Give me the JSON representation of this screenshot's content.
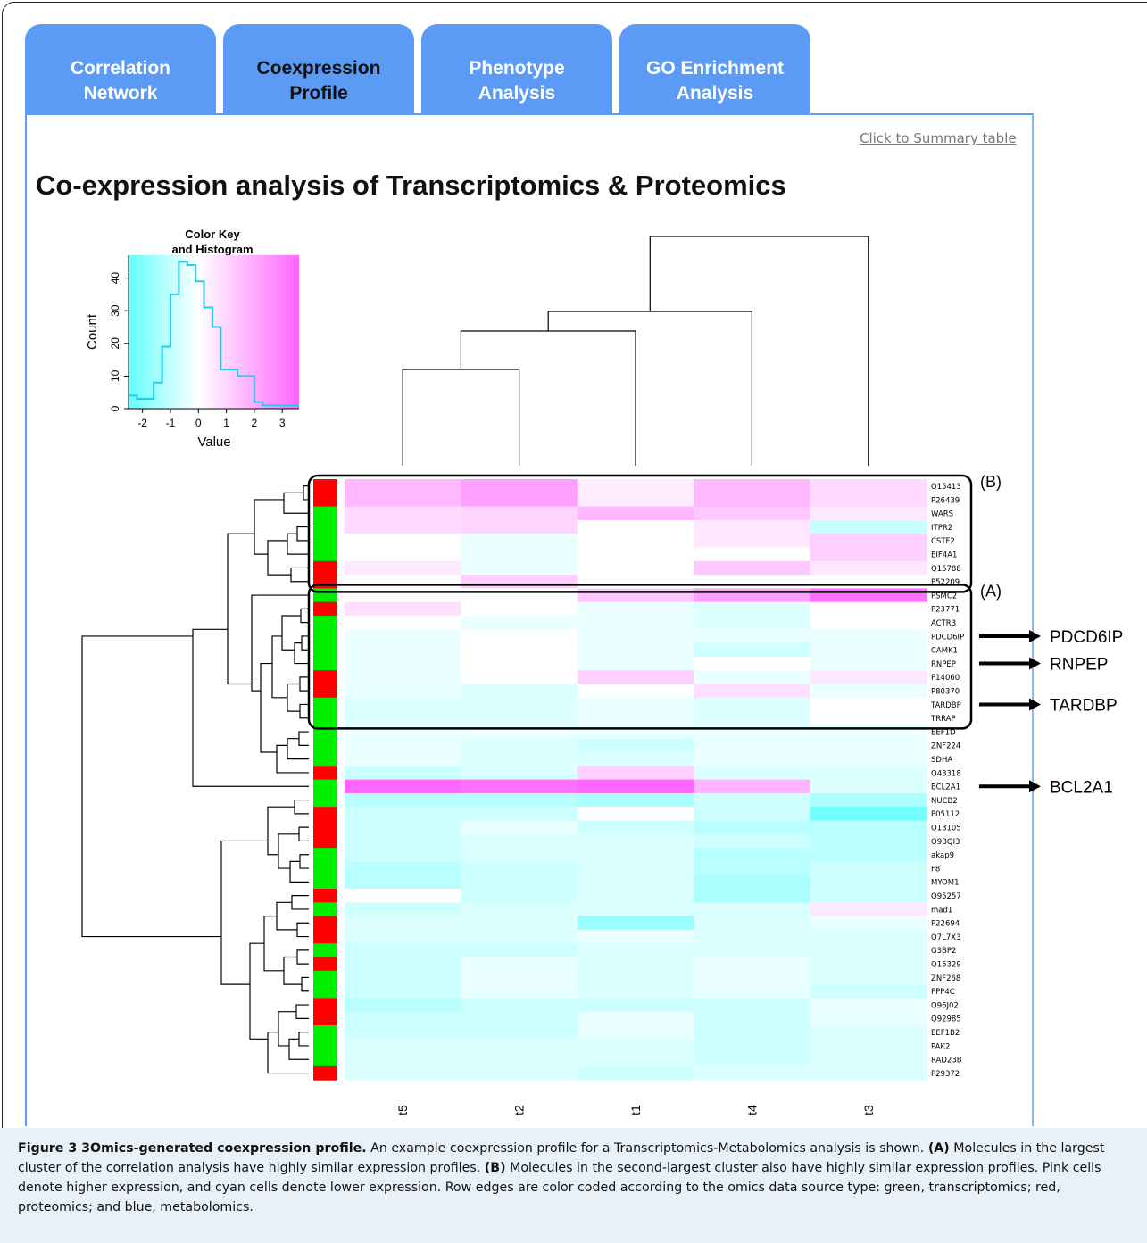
{
  "tabs": [
    {
      "line1": "Correlation",
      "line2": "Network",
      "active": false
    },
    {
      "line1": "Coexpression",
      "line2": "Profile",
      "active": true
    },
    {
      "line1": "Phenotype",
      "line2": "Analysis",
      "active": false
    },
    {
      "line1": "GO Enrichment",
      "line2": "Analysis",
      "active": false
    }
  ],
  "summary_link": "Click to Summary table",
  "page_title": "Co-expression analysis of Transcriptomics & Proteomics",
  "colors": {
    "tab": "#5b9bf5",
    "pink_high": "#ff66ff",
    "cyan_low": "#66ffff",
    "transcriptomics": "#00ee00",
    "proteomics": "#ff0000"
  },
  "chart_data": [
    {
      "type": "histogram",
      "title": "Color Key\nand Histogram",
      "title_lines": [
        "Color Key",
        "and Histogram"
      ],
      "xlabel": "Value",
      "ylabel": "Count",
      "xlim": [
        -2.5,
        3.6
      ],
      "ylim": [
        0,
        47
      ],
      "xticks": [
        -2,
        -1,
        0,
        1,
        2,
        3
      ],
      "yticks": [
        0,
        10,
        20,
        30,
        40
      ],
      "bins": [
        {
          "x0": -2.5,
          "x1": -2.2,
          "count": 4
        },
        {
          "x0": -2.2,
          "x1": -1.9,
          "count": 3
        },
        {
          "x0": -1.9,
          "x1": -1.6,
          "count": 3
        },
        {
          "x0": -1.6,
          "x1": -1.3,
          "count": 8
        },
        {
          "x0": -1.3,
          "x1": -1.0,
          "count": 19
        },
        {
          "x0": -1.0,
          "x1": -0.7,
          "count": 35
        },
        {
          "x0": -0.7,
          "x1": -0.4,
          "count": 45
        },
        {
          "x0": -0.4,
          "x1": -0.1,
          "count": 44
        },
        {
          "x0": -0.1,
          "x1": 0.2,
          "count": 39
        },
        {
          "x0": 0.2,
          "x1": 0.5,
          "count": 31
        },
        {
          "x0": 0.5,
          "x1": 0.8,
          "count": 25
        },
        {
          "x0": 0.8,
          "x1": 1.1,
          "count": 12
        },
        {
          "x0": 1.1,
          "x1": 1.4,
          "count": 12
        },
        {
          "x0": 1.4,
          "x1": 1.7,
          "count": 10
        },
        {
          "x0": 1.7,
          "x1": 2.0,
          "count": 10
        },
        {
          "x0": 2.0,
          "x1": 2.3,
          "count": 2
        },
        {
          "x0": 2.3,
          "x1": 2.6,
          "count": 1
        },
        {
          "x0": 2.6,
          "x1": 2.9,
          "count": 1
        },
        {
          "x0": 2.9,
          "x1": 3.6,
          "count": 1
        }
      ]
    },
    {
      "type": "heatmap",
      "columns": [
        "t5",
        "t2",
        "t1",
        "t4",
        "t3"
      ],
      "rows": [
        "Q15413",
        "P26439",
        "WARS",
        "ITPR2",
        "CSTF2",
        "EIF4A1",
        "Q15788",
        "P52209",
        "PSMC2",
        "P23771",
        "ACTR3",
        "PDCD6IP",
        "CAMK1",
        "RNPEP",
        "P14060",
        "P80370",
        "TARDBP",
        "TRRAP",
        "EEF1D",
        "ZNF224",
        "SDHA",
        "O43318",
        "BCL2A1",
        "NUCB2",
        "P05112",
        "Q13105",
        "Q9BQI3",
        "akap9",
        "F8",
        "MYOM1",
        "O95257",
        "mad1",
        "P22694",
        "Q7L7X3",
        "G3BP2",
        "Q15329",
        "ZNF268",
        "PPP4C",
        "Q96J02",
        "Q92985",
        "EEF1B2",
        "PAK2",
        "RAD23B",
        "P29372"
      ],
      "row_source": [
        "proteomics",
        "proteomics",
        "transcriptomics",
        "transcriptomics",
        "transcriptomics",
        "transcriptomics",
        "proteomics",
        "proteomics",
        "transcriptomics",
        "proteomics",
        "transcriptomics",
        "transcriptomics",
        "transcriptomics",
        "transcriptomics",
        "proteomics",
        "proteomics",
        "transcriptomics",
        "transcriptomics",
        "transcriptomics",
        "transcriptomics",
        "transcriptomics",
        "proteomics",
        "transcriptomics",
        "transcriptomics",
        "proteomics",
        "proteomics",
        "proteomics",
        "transcriptomics",
        "transcriptomics",
        "transcriptomics",
        "proteomics",
        "transcriptomics",
        "proteomics",
        "proteomics",
        "transcriptomics",
        "proteomics",
        "transcriptomics",
        "transcriptomics",
        "proteomics",
        "proteomics",
        "transcriptomics",
        "transcriptomics",
        "transcriptomics",
        "proteomics"
      ],
      "values": [
        [
          1.5,
          2.0,
          0.4,
          1.5,
          0.8
        ],
        [
          1.5,
          2.0,
          0.4,
          1.5,
          0.8
        ],
        [
          0.8,
          0.9,
          1.5,
          1.2,
          0.5
        ],
        [
          0.8,
          0.9,
          0.0,
          0.5,
          -0.8
        ],
        [
          0.0,
          -0.3,
          0.0,
          0.5,
          1.0
        ],
        [
          0.0,
          -0.3,
          0.0,
          0.0,
          1.0
        ],
        [
          0.5,
          -0.3,
          0.0,
          1.2,
          0.5
        ],
        [
          0.0,
          1.0,
          0.0,
          0.0,
          0.0
        ],
        [
          0.0,
          0.0,
          1.2,
          2.0,
          3.0
        ],
        [
          0.7,
          0.0,
          -0.3,
          -0.5,
          0.0
        ],
        [
          0.0,
          -0.3,
          -0.3,
          -0.5,
          0.0
        ],
        [
          -0.3,
          0.0,
          -0.3,
          -0.3,
          -0.3
        ],
        [
          -0.3,
          0.0,
          -0.3,
          -0.7,
          -0.3
        ],
        [
          -0.3,
          0.0,
          -0.3,
          0.0,
          -0.3
        ],
        [
          -0.3,
          0.0,
          1.0,
          -0.3,
          0.5
        ],
        [
          -0.3,
          -0.5,
          0.0,
          0.7,
          -0.3
        ],
        [
          -0.5,
          -0.5,
          -0.3,
          -0.5,
          0.0
        ],
        [
          -0.5,
          -0.5,
          -0.3,
          -0.5,
          0.0
        ],
        [
          -0.3,
          -0.3,
          -0.3,
          -0.3,
          -0.3
        ],
        [
          -0.3,
          -0.5,
          -0.7,
          -0.3,
          -0.3
        ],
        [
          -0.3,
          -0.5,
          -0.5,
          -0.3,
          -0.3
        ],
        [
          -0.7,
          -0.5,
          1.0,
          -0.5,
          -0.5
        ],
        [
          3.2,
          3.0,
          3.2,
          1.6,
          -0.5
        ],
        [
          -1.0,
          -1.0,
          -1.2,
          -0.7,
          -1.2
        ],
        [
          -0.7,
          -0.7,
          0.0,
          -0.7,
          -2.0
        ],
        [
          -0.7,
          -0.3,
          -0.7,
          -1.0,
          -1.0
        ],
        [
          -0.7,
          -0.5,
          -0.5,
          -0.7,
          -1.0
        ],
        [
          -0.7,
          -0.5,
          -0.5,
          -1.0,
          -1.0
        ],
        [
          -1.0,
          -0.7,
          -0.5,
          -1.0,
          -0.7
        ],
        [
          -1.0,
          -0.7,
          -0.5,
          -1.2,
          -0.7
        ],
        [
          0.0,
          -0.7,
          -0.5,
          -1.2,
          -0.7
        ],
        [
          -0.7,
          -0.5,
          -0.5,
          -0.5,
          0.5
        ],
        [
          -0.5,
          -0.5,
          -1.5,
          -0.5,
          -0.3
        ],
        [
          -0.5,
          -0.5,
          -0.3,
          -0.5,
          -0.5
        ],
        [
          -0.7,
          -0.7,
          -0.5,
          -0.5,
          -0.5
        ],
        [
          -0.7,
          -0.3,
          -0.5,
          -0.3,
          -0.5
        ],
        [
          -0.7,
          -0.3,
          -0.5,
          -0.3,
          -0.5
        ],
        [
          -0.7,
          -0.3,
          -0.5,
          -0.3,
          -0.7
        ],
        [
          -1.0,
          -0.7,
          -0.7,
          -0.7,
          -0.3
        ],
        [
          -0.7,
          -0.7,
          -0.3,
          -0.7,
          -0.3
        ],
        [
          -0.7,
          -0.7,
          -0.3,
          -0.7,
          -0.5
        ],
        [
          -0.5,
          -0.5,
          -0.5,
          -0.7,
          -0.5
        ],
        [
          -0.5,
          -0.5,
          -0.5,
          -0.7,
          -0.5
        ],
        [
          -0.5,
          -0.5,
          -0.7,
          -0.5,
          -0.5
        ]
      ],
      "clusters": [
        {
          "label": "(B)",
          "first_row": "Q15413",
          "last_row": "P52209"
        },
        {
          "label": "(A)",
          "first_row": "PSMC2",
          "last_row": "TRRAP"
        }
      ],
      "callouts": [
        {
          "label": "PDCD6IP",
          "row": "PDCD6IP"
        },
        {
          "label": "RNPEP",
          "row": "RNPEP"
        },
        {
          "label": "TARDBP",
          "row": "TARDBP"
        },
        {
          "label": "BCL2A1",
          "row": "BCL2A1"
        }
      ]
    }
  ],
  "caption": {
    "bold_title": "Figure 3 3Omics-generated coexpression profile.",
    "intro": " An example coexpression profile for a Transcriptomics-Metabolomics analysis is shown. ",
    "a_label": "(A)",
    "a_text": " Molecules in the largest cluster of the correlation analysis have highly similar expression profiles. ",
    "b_label": "(B)",
    "b_text": " Molecules in the second-largest cluster also have highly similar expression profiles. Pink cells denote higher expression, and cyan cells denote lower expression. Row edges are color coded according to the omics data source type: green, transcriptomics; red, proteomics; and blue, metabolomics."
  }
}
